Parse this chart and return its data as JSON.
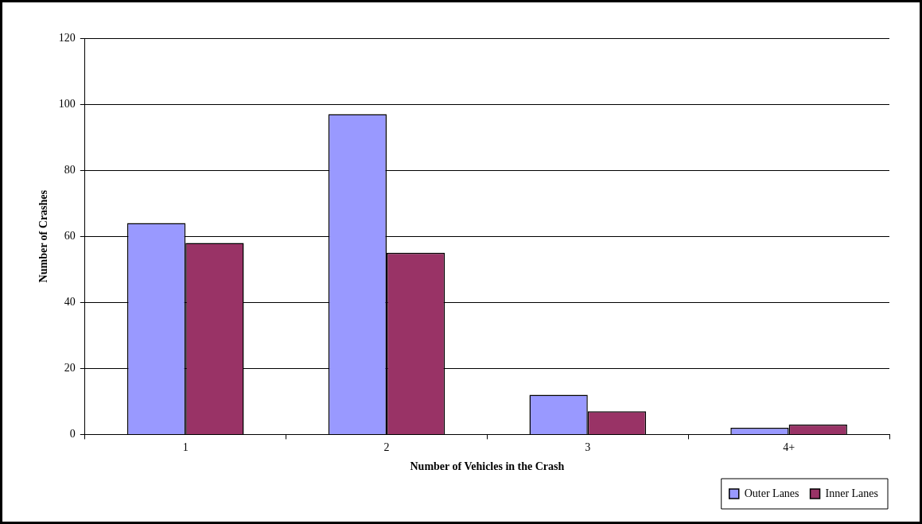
{
  "chart_data": {
    "type": "bar",
    "xlabel": "Number of Vehicles in the Crash",
    "ylabel": "Number of Crashes",
    "categories": [
      "1",
      "2",
      "3",
      "4+"
    ],
    "series": [
      {
        "name": "Outer Lanes",
        "color": "#9999ff",
        "values": [
          64,
          97,
          12,
          2
        ]
      },
      {
        "name": "Inner Lanes",
        "color": "#993366",
        "values": [
          58,
          55,
          7,
          3
        ]
      }
    ],
    "ylim": [
      0,
      120
    ],
    "yticks": [
      0,
      20,
      40,
      60,
      80,
      100,
      120
    ],
    "grid": "y",
    "legend": "bottom right"
  }
}
